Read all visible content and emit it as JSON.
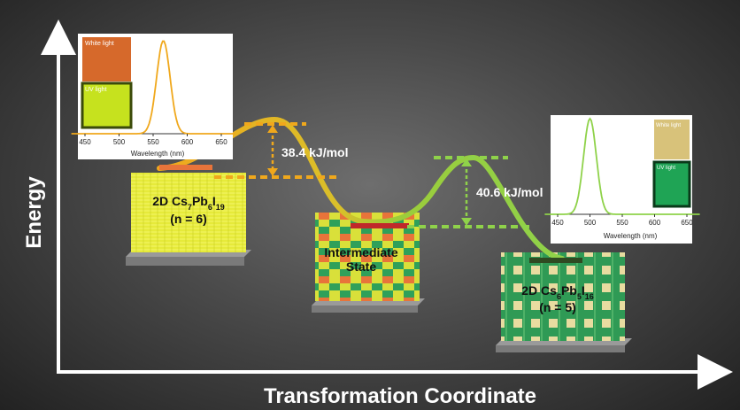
{
  "axes": {
    "y_label": "Energy",
    "x_label": "Transformation Coordinate"
  },
  "states": {
    "left": {
      "name_prefix": "2D Cs",
      "formula": [
        "Cs",
        "7",
        "Pb",
        "6",
        "I",
        "19"
      ],
      "n_line": "(n = 6)"
    },
    "middle": {
      "line1": "Intermediate",
      "line2": "State"
    },
    "right": {
      "formula": [
        "Cs",
        "6",
        "Pb",
        "5",
        "I",
        "16"
      ],
      "n_line": "(n = 5)"
    }
  },
  "barriers": {
    "first": "38.4 kJ/mol",
    "second": "40.6 kJ/mol"
  },
  "inset_left": {
    "photo_top_label": "White light",
    "photo_bottom_label": "UV light",
    "x_ticks": [
      "450",
      "500",
      "550",
      "600",
      "650"
    ],
    "x_label": "Wavelength (nm)",
    "peak_nm": 565,
    "line_color": "#f0a81c"
  },
  "inset_right": {
    "photo_top_label": "White light",
    "photo_bottom_label": "UV light",
    "x_ticks": [
      "450",
      "500",
      "550",
      "600",
      "650"
    ],
    "x_label": "Wavelength (nm)",
    "peak_nm": 500,
    "line_color": "#8fd24a"
  },
  "colors": {
    "path_left": "#f0a81c",
    "path_right": "#8fd24a",
    "barrier_orange": "#f0a81c",
    "barrier_green": "#8fd24a",
    "left_state_bar": "#e8743a",
    "middle_state_bar": "#c0282a",
    "right_state_bar": "#2f4a22"
  }
}
